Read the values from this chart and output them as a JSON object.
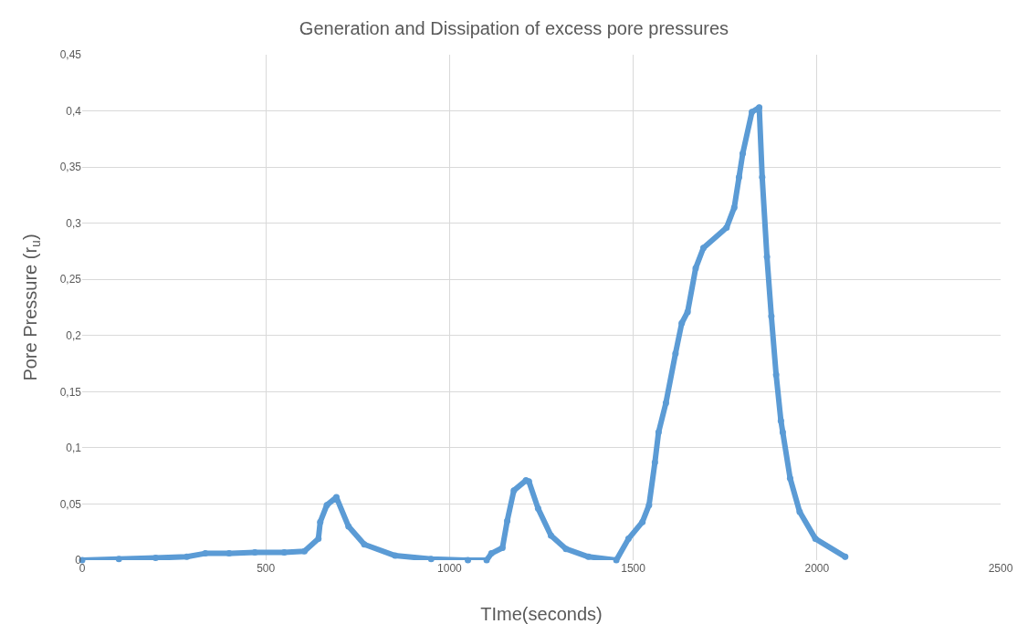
{
  "chart_data": {
    "type": "line",
    "title": "Generation and Dissipation of excess pore pressures",
    "xlabel": "TIme(seconds)",
    "ylabel": "Pore Pressure (r$_{u}$)",
    "x": [
      0,
      100,
      200,
      285,
      335,
      400,
      470,
      550,
      605,
      643,
      648,
      666,
      692,
      725,
      768,
      852,
      950,
      1050,
      1101,
      1114,
      1144,
      1157,
      1175,
      1208,
      1216,
      1241,
      1276,
      1317,
      1378,
      1454,
      1487,
      1525,
      1543,
      1559,
      1569,
      1589,
      1615,
      1632,
      1648,
      1670,
      1691,
      1754,
      1775,
      1788,
      1798,
      1823,
      1843,
      1851,
      1864,
      1876,
      1889,
      1902,
      1907,
      1927,
      1953,
      1996,
      2077
    ],
    "series": [
      {
        "color": "#5b9bd5",
        "values": [
          0,
          0.001,
          0.002,
          0.003,
          0.006,
          0.006,
          0.007,
          0.007,
          0.008,
          0.019,
          0.034,
          0.049,
          0.056,
          0.03,
          0.014,
          0.004,
          0.001,
          0,
          0,
          0.006,
          0.011,
          0.035,
          0.062,
          0.071,
          0.07,
          0.046,
          0.022,
          0.01,
          0.003,
          0,
          0.019,
          0.034,
          0.049,
          0.087,
          0.114,
          0.14,
          0.184,
          0.211,
          0.221,
          0.26,
          0.278,
          0.296,
          0.314,
          0.341,
          0.362,
          0.399,
          0.403,
          0.341,
          0.27,
          0.217,
          0.165,
          0.124,
          0.114,
          0.073,
          0.043,
          0.019,
          0.003
        ]
      }
    ],
    "xlim": [
      0,
      2500
    ],
    "xticks": [
      0,
      500,
      1000,
      1500,
      2000,
      2500
    ],
    "ylim": [
      0,
      0.45
    ],
    "yticks": [
      0,
      {
        "value": 0.05,
        "label": "0,05"
      },
      {
        "value": 0.1,
        "label": "0,1"
      },
      {
        "value": 0.15,
        "label": "0,15"
      },
      {
        "value": 0.2,
        "label": "0,2"
      },
      {
        "value": 0.25,
        "label": "0,25"
      },
      {
        "value": 0.3,
        "label": "0,3"
      },
      {
        "value": 0.35,
        "label": "0,35"
      },
      {
        "value": 0.4,
        "label": "0,4"
      },
      {
        "value": 0.45,
        "label": "0,45"
      }
    ],
    "grid": true,
    "marker": "circle",
    "line_style": "solid"
  }
}
